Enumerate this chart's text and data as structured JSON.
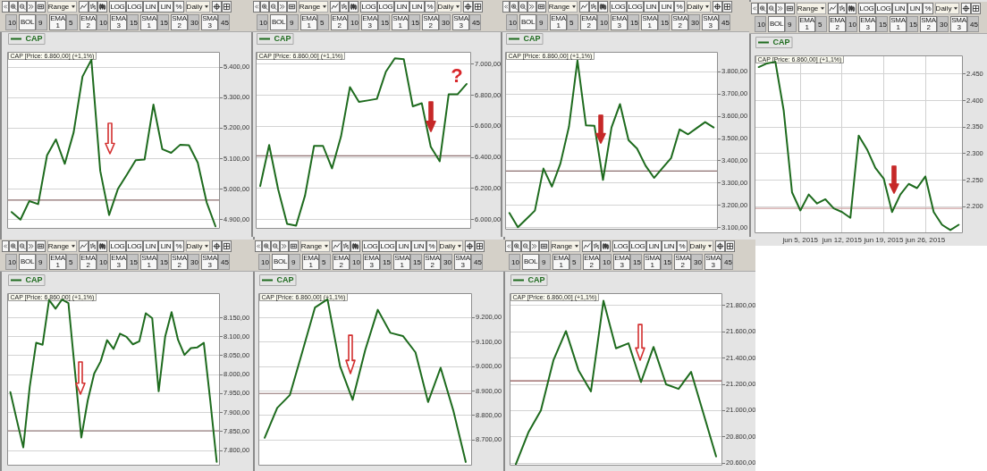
{
  "chart_data": [
    {
      "type": "line",
      "categories": [
        null,
        null,
        null,
        null,
        null,
        null,
        null,
        null,
        null,
        null,
        null,
        null,
        null,
        null,
        null,
        null,
        null,
        null,
        null,
        null,
        null,
        null,
        null,
        null
      ],
      "series": [
        {
          "name": "CAP",
          "color": "#1e6b1e",
          "values": [
            4925,
            4900,
            4961,
            4951,
            5111,
            5163,
            5083,
            5186,
            5369,
            5424,
            5060,
            4915,
            5001,
            5047,
            5095,
            5097,
            5277,
            5131,
            5119,
            5145,
            5144,
            5087,
            4957,
            4878
          ]
        }
      ],
      "ylim": [
        4870,
        5450
      ],
      "yticks": [
        {
          "value": 4900,
          "label": "4.900,00"
        },
        {
          "value": 5000,
          "label": "5.000,00"
        },
        {
          "value": 5100,
          "label": "5.100,00"
        },
        {
          "value": 5200,
          "label": "5.200,00"
        },
        {
          "value": 5300,
          "label": "5.300,00"
        },
        {
          "value": 5400,
          "label": "5.400,00"
        }
      ],
      "grid": "y",
      "legend": "top left",
      "tick_labels": "y",
      "ref_lines": [
        {
          "axis": "y",
          "value": 4964,
          "color": "#8c6e6e"
        }
      ],
      "annotations": [
        "CAP [Price: 6.860,00] (+1,1%)",
        "Range",
        "LOG",
        "LOG",
        "LIN",
        "LIN",
        "%",
        "Daily",
        "10",
        "BOL",
        "9",
        "EMA 1",
        "5",
        "EMA 2",
        "10",
        "EMA 3",
        "15",
        "SMA 1",
        "15",
        "SMA 2",
        "30",
        "SMA 3",
        "45"
      ]
    },
    {
      "type": "line",
      "categories": [
        null,
        null,
        null,
        null,
        null,
        null,
        null,
        null,
        null,
        null,
        null,
        null,
        null,
        null,
        null,
        null,
        null,
        null,
        null,
        null,
        null,
        null,
        null,
        null
      ],
      "series": [
        {
          "name": "CAP",
          "color": "#1e6b1e",
          "values": [
            6215,
            6480,
            6195,
            5972,
            5960,
            6155,
            6474,
            6474,
            6329,
            6534,
            6853,
            6757,
            6767,
            6777,
            6952,
            7038,
            7032,
            6729,
            6749,
            6468,
            6375,
            6807,
            6807,
            6873
          ]
        }
      ],
      "ylim": [
        5940,
        7080
      ],
      "yticks": [
        {
          "value": 6000,
          "label": "6.000,00"
        },
        {
          "value": 6200,
          "label": "6.200,00"
        },
        {
          "value": 6400,
          "label": "6.400,00"
        },
        {
          "value": 6600,
          "label": "6.600,00"
        },
        {
          "value": 6800,
          "label": "6.800,00"
        },
        {
          "value": 7000,
          "label": "7.000,00"
        }
      ],
      "grid": "y",
      "legend": "top left",
      "tick_labels": "y",
      "ref_lines": [
        {
          "axis": "y",
          "value": 6410,
          "color": "#8c6e6e"
        }
      ],
      "annotations": [
        "CAP [Price: 6.860,00] (+1,1%)",
        "Range",
        "LOG",
        "LOG",
        "LIN",
        "LIN",
        "%",
        "Daily",
        "10",
        "BOL",
        "9",
        "EMA 1",
        "5",
        "EMA 2",
        "10",
        "EMA 3",
        "15",
        "SMA 1",
        "15",
        "SMA 2",
        "30",
        "SMA 3",
        "45",
        "?"
      ]
    },
    {
      "type": "line",
      "categories": [
        null,
        null,
        null,
        null,
        null,
        null,
        null,
        null,
        null,
        null,
        null,
        null,
        null,
        null,
        null,
        null,
        null,
        null,
        null,
        null,
        null,
        null,
        null,
        null,
        null
      ],
      "series": [
        {
          "name": "CAP",
          "color": "#1e6b1e",
          "values": [
            3165,
            3101,
            3138,
            3176,
            3365,
            3284,
            3388,
            3553,
            3851,
            3559,
            3557,
            3314,
            3550,
            3655,
            3493,
            3455,
            3378,
            3323,
            3368,
            3412,
            3541,
            3519,
            3547,
            3574,
            3550
          ]
        }
      ],
      "ylim": [
        3090,
        3890
      ],
      "yticks": [
        {
          "value": 3100,
          "label": "3.100,00"
        },
        {
          "value": 3200,
          "label": "3.200,00"
        },
        {
          "value": 3300,
          "label": "3.300,00"
        },
        {
          "value": 3400,
          "label": "3.400,00"
        },
        {
          "value": 3500,
          "label": "3.500,00"
        },
        {
          "value": 3600,
          "label": "3.600,00"
        },
        {
          "value": 3700,
          "label": "3.700,00"
        },
        {
          "value": 3800,
          "label": "3.800,00"
        }
      ],
      "grid": "y",
      "legend": "top left",
      "tick_labels": "y",
      "ref_lines": [
        {
          "axis": "y",
          "value": 3354,
          "color": "#8c6e6e"
        }
      ],
      "annotations": [
        "CAP [Price: 6.860,00] (+1,1%)",
        "Range",
        "LOG",
        "LOG",
        "LIN",
        "LIN",
        "%",
        "Daily",
        "10",
        "BOL",
        "9",
        "EMA 1",
        "5",
        "EMA 2",
        "10",
        "EMA 3",
        "15",
        "SMA 1",
        "15",
        "SMA 2",
        "30",
        "SMA 3",
        "45"
      ]
    },
    {
      "type": "line",
      "categories": [
        null,
        null,
        null,
        null,
        null,
        "jun 5, 2015",
        null,
        null,
        null,
        null,
        "jun 12, 2015",
        null,
        null,
        null,
        null,
        "jun 19, 2015",
        null,
        null,
        null,
        null,
        "jun 26, 2015",
        null,
        null,
        null,
        null
      ],
      "series": [
        {
          "name": "CAP",
          "color": "#1e6b1e",
          "values": [
            2463,
            2470,
            2473,
            2381,
            2227,
            2193,
            2223,
            2206,
            2214,
            2197,
            2190,
            2179,
            2334,
            2308,
            2273,
            2253,
            2190,
            2223,
            2243,
            2235,
            2257,
            2190,
            2166,
            2156,
            2166
          ]
        }
      ],
      "ylim": [
        2150,
        2485
      ],
      "yticks": [
        {
          "value": 2200,
          "label": "2.200"
        },
        {
          "value": 2250,
          "label": "2.250"
        },
        {
          "value": 2300,
          "label": "2.300"
        },
        {
          "value": 2350,
          "label": "2.350"
        },
        {
          "value": 2400,
          "label": "2.400"
        },
        {
          "value": 2450,
          "label": "2.450"
        }
      ],
      "grid": true,
      "legend": "top left",
      "ref_lines": [
        {
          "axis": "y",
          "value": 2197,
          "color": "#cfa3a3"
        }
      ],
      "annotations": [
        "CAP [Price: 6.860,00] (+1,1%)",
        "Range",
        "LOG",
        "LOG",
        "LIN",
        "LIN",
        "%",
        "Daily",
        "10",
        "BOL",
        "9",
        "EMA 1",
        "5",
        "EMA 2",
        "10",
        "EMA 3",
        "15",
        "SMA 1",
        "15",
        "SMA 2",
        "30",
        "SMA 3",
        "45"
      ]
    },
    {
      "type": "line",
      "categories": [
        null,
        null,
        null,
        null,
        null,
        null,
        null,
        null,
        null,
        null,
        null,
        null,
        null,
        null,
        null,
        null,
        null,
        null,
        null,
        null,
        null,
        null,
        null,
        null,
        null,
        null,
        null,
        null,
        null,
        null,
        null,
        null,
        null
      ],
      "series": [
        {
          "name": "CAP",
          "color": "#1e6b1e",
          "values": [
            7954,
            7880,
            7808,
            7968,
            8084,
            8079,
            8197,
            8174,
            8198,
            8189,
            8012,
            7834,
            7932,
            8003,
            8035,
            8091,
            8068,
            8108,
            8100,
            8080,
            8088,
            8162,
            8149,
            7956,
            8100,
            8165,
            8092,
            8052,
            8070,
            8072,
            8084,
            7932,
            7770
          ]
        }
      ],
      "ylim": [
        7760,
        8215
      ],
      "yticks": [
        {
          "value": 7800,
          "label": "7.800,00"
        },
        {
          "value": 7850,
          "label": "7.850,00"
        },
        {
          "value": 7900,
          "label": "7.900,00"
        },
        {
          "value": 7950,
          "label": "7.950,00"
        },
        {
          "value": 8000,
          "label": "8.000,00"
        },
        {
          "value": 8050,
          "label": "8.050,00"
        },
        {
          "value": 8100,
          "label": "8.100,00"
        },
        {
          "value": 8150,
          "label": "8.150,00"
        }
      ],
      "grid": "y",
      "legend": "top left",
      "tick_labels": "y",
      "ref_lines": [
        {
          "axis": "y",
          "value": 7852,
          "color": "#8c6e6e"
        }
      ],
      "annotations": [
        "CAP [Price: 6.860,00] (+1,1%)",
        "Range",
        "LOG",
        "LOG",
        "LIN",
        "LIN",
        "%",
        "Daily",
        "10",
        "BOL",
        "9",
        "EMA 1",
        "5",
        "EMA 2",
        "10",
        "EMA 3",
        "15",
        "SMA 1",
        "15",
        "SMA 2",
        "30",
        "SMA 3",
        "45"
      ]
    },
    {
      "type": "line",
      "categories": [
        null,
        null,
        null,
        null,
        null,
        null,
        null,
        null,
        null,
        null,
        null,
        null,
        null,
        null,
        null,
        null,
        null
      ],
      "series": [
        {
          "name": "CAP",
          "color": "#1e6b1e",
          "values": [
            8709,
            8831,
            8883,
            9061,
            9241,
            9275,
            9001,
            8864,
            9067,
            9232,
            9138,
            9125,
            9058,
            8855,
            8995,
            8822,
            8610
          ]
        }
      ],
      "ylim": [
        8595,
        9300
      ],
      "yticks": [
        {
          "value": 8700,
          "label": "8.700,00"
        },
        {
          "value": 8800,
          "label": "8.800,00"
        },
        {
          "value": 8900,
          "label": "8.900,00"
        },
        {
          "value": 9000,
          "label": "9.000,00"
        },
        {
          "value": 9100,
          "label": "9.100,00"
        },
        {
          "value": 9200,
          "label": "9.200,00"
        }
      ],
      "grid": "y",
      "legend": "top left",
      "tick_labels": "y",
      "ref_lines": [
        {
          "axis": "y",
          "value": 8890,
          "color": "#8c6e6e"
        }
      ],
      "annotations": [
        "CAP [Price: 6.860,00] (+1,1%)",
        "Range",
        "LOG",
        "LOG",
        "LIN",
        "LIN",
        "%",
        "Daily",
        "10",
        "BOL",
        "9",
        "EMA 1",
        "5",
        "EMA 2",
        "10",
        "EMA 3",
        "15",
        "SMA 1",
        "15",
        "SMA 2",
        "30",
        "SMA 3",
        "45"
      ]
    },
    {
      "type": "line",
      "categories": [
        null,
        null,
        null,
        null,
        null,
        null,
        null,
        null,
        null,
        null,
        null,
        null,
        null,
        null,
        null,
        null,
        null
      ],
      "series": [
        {
          "name": "CAP",
          "color": "#1e6b1e",
          "values": [
            20591,
            20833,
            21001,
            21383,
            21606,
            21308,
            21146,
            21837,
            21474,
            21513,
            21217,
            21485,
            21200,
            21165,
            21295,
            20973,
            20650
          ]
        }
      ],
      "ylim": [
        20580,
        21895
      ],
      "yticks": [
        {
          "value": 20600,
          "label": "20.600,00"
        },
        {
          "value": 20800,
          "label": "20.800,00"
        },
        {
          "value": 21000,
          "label": "21.000,00"
        },
        {
          "value": 21200,
          "label": "21.200,00"
        },
        {
          "value": 21400,
          "label": "21.400,00"
        },
        {
          "value": 21600,
          "label": "21.600,00"
        },
        {
          "value": 21800,
          "label": "21.800,00"
        }
      ],
      "grid": "y",
      "legend": "top left",
      "tick_labels": "y",
      "ref_lines": [
        {
          "axis": "y",
          "value": 21226,
          "color": "#8e5555"
        }
      ],
      "annotations": [
        "CAP [Price: 6.860,00] (+1,1%)",
        "Range",
        "LOG",
        "LOG",
        "LIN",
        "LIN",
        "%",
        "Daily",
        "10",
        "BOL",
        "9",
        "EMA 1",
        "5",
        "EMA 2",
        "10",
        "EMA 3",
        "15",
        "SMA 1",
        "15",
        "SMA 2",
        "30",
        "SMA 3",
        "45"
      ]
    }
  ]
}
